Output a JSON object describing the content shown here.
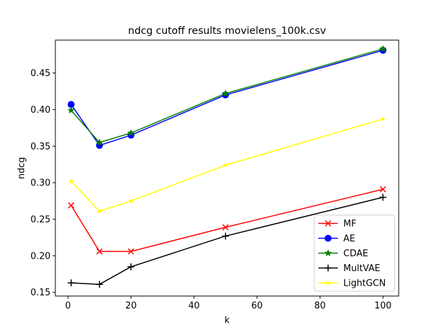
{
  "chart_data": {
    "type": "line",
    "title": "ndcg cutoff results movielens_100k.csv",
    "xlabel": "k",
    "ylabel": "ndcg",
    "x": [
      1,
      10,
      20,
      50,
      100
    ],
    "xlim": [
      -4,
      105
    ],
    "ylim": [
      0.145,
      0.495
    ],
    "xticks": [
      0,
      20,
      40,
      60,
      80,
      100
    ],
    "yticks": [
      0.15,
      0.2,
      0.25,
      0.3,
      0.35,
      0.4,
      0.45
    ],
    "xtick_labels": [
      "0",
      "20",
      "40",
      "60",
      "80",
      "100"
    ],
    "ytick_labels": [
      "0.15",
      "0.20",
      "0.25",
      "0.30",
      "0.35",
      "0.40",
      "0.45"
    ],
    "grid": false,
    "legend_position": "lower-right",
    "series": [
      {
        "name": "MF",
        "color": "#ff0000",
        "marker": "x",
        "values": [
          0.269,
          0.206,
          0.206,
          0.239,
          0.291
        ]
      },
      {
        "name": "AE",
        "color": "#0000ff",
        "marker": "circle",
        "values": [
          0.407,
          0.351,
          0.365,
          0.42,
          0.481
        ]
      },
      {
        "name": "CDAE",
        "color": "#008000",
        "marker": "star",
        "values": [
          0.399,
          0.355,
          0.368,
          0.422,
          0.483
        ]
      },
      {
        "name": "MultVAE",
        "color": "#000000",
        "marker": "plus",
        "values": [
          0.163,
          0.161,
          0.185,
          0.227,
          0.28
        ]
      },
      {
        "name": "LightGCN",
        "color": "#ffff00",
        "marker": "point",
        "values": [
          0.302,
          0.261,
          0.275,
          0.324,
          0.387
        ]
      }
    ]
  }
}
